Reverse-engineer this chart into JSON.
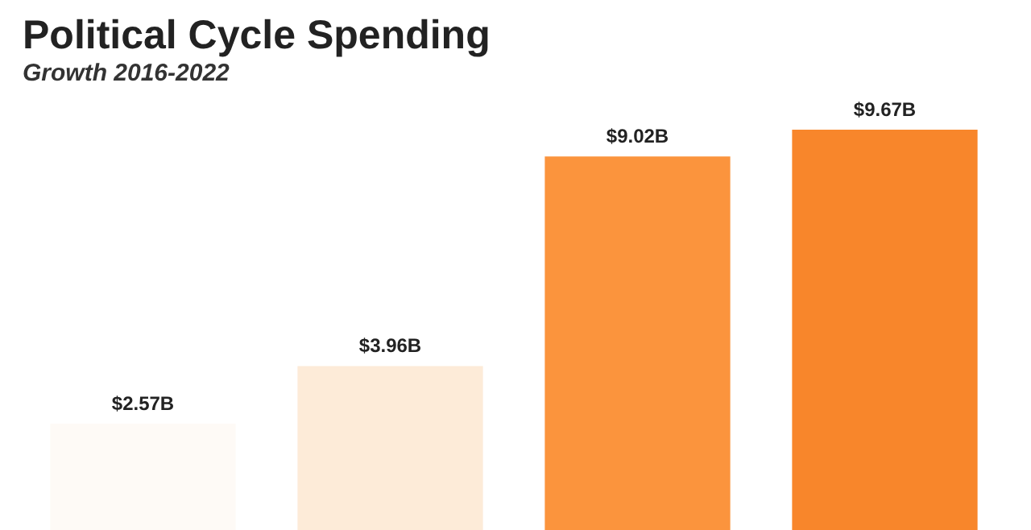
{
  "chart_data": {
    "type": "bar",
    "title": "Political Cycle Spending",
    "subtitle": "Growth 2016-2022",
    "categories": [
      null,
      null,
      null,
      null
    ],
    "values": [
      2.57,
      3.96,
      9.02,
      9.67
    ],
    "colors": [
      "#fefaf6",
      "#fdebd8",
      "#fb943d",
      "#f8862b"
    ],
    "value_labels": [
      "$2.57B",
      "$3.96B",
      "$9.02B",
      "$9.67B"
    ]
  }
}
